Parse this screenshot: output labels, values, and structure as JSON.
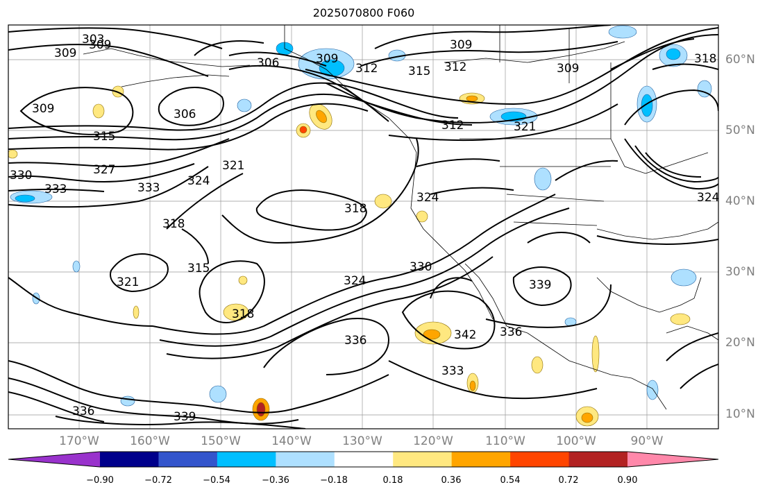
{
  "title": "2025070800 F060",
  "map": {
    "contour_labels": [
      "303",
      "309",
      "306",
      "309",
      "312",
      "315",
      "318",
      "321",
      "324",
      "327",
      "330",
      "333",
      "336",
      "339",
      "342"
    ],
    "lon_labels": [
      "170°W",
      "160°W",
      "150°W",
      "140°W",
      "130°W",
      "120°W",
      "110°W",
      "100°W",
      "90°W"
    ],
    "lat_labels": [
      "60°N",
      "50°N",
      "40°N",
      "30°N",
      "20°N",
      "10°N"
    ]
  },
  "colorbar": {
    "ticks": [
      "−0.90",
      "−0.72",
      "−0.54",
      "−0.36",
      "−0.18",
      "0.18",
      "0.36",
      "0.54",
      "0.72",
      "0.90"
    ],
    "colors": [
      "#9932cc",
      "#00008b",
      "#3355cc",
      "#00bfff",
      "#aee0ff",
      "#ffffff",
      "#ffe880",
      "#ffa500",
      "#ff4500",
      "#b22222",
      "#ff88aa"
    ]
  },
  "chart_data": {
    "type": "contour-map",
    "title": "2025070800 F060",
    "colorbar_ticks": [
      -0.9,
      -0.72,
      -0.54,
      -0.36,
      -0.18,
      0.18,
      0.36,
      0.54,
      0.72,
      0.9
    ]
  }
}
